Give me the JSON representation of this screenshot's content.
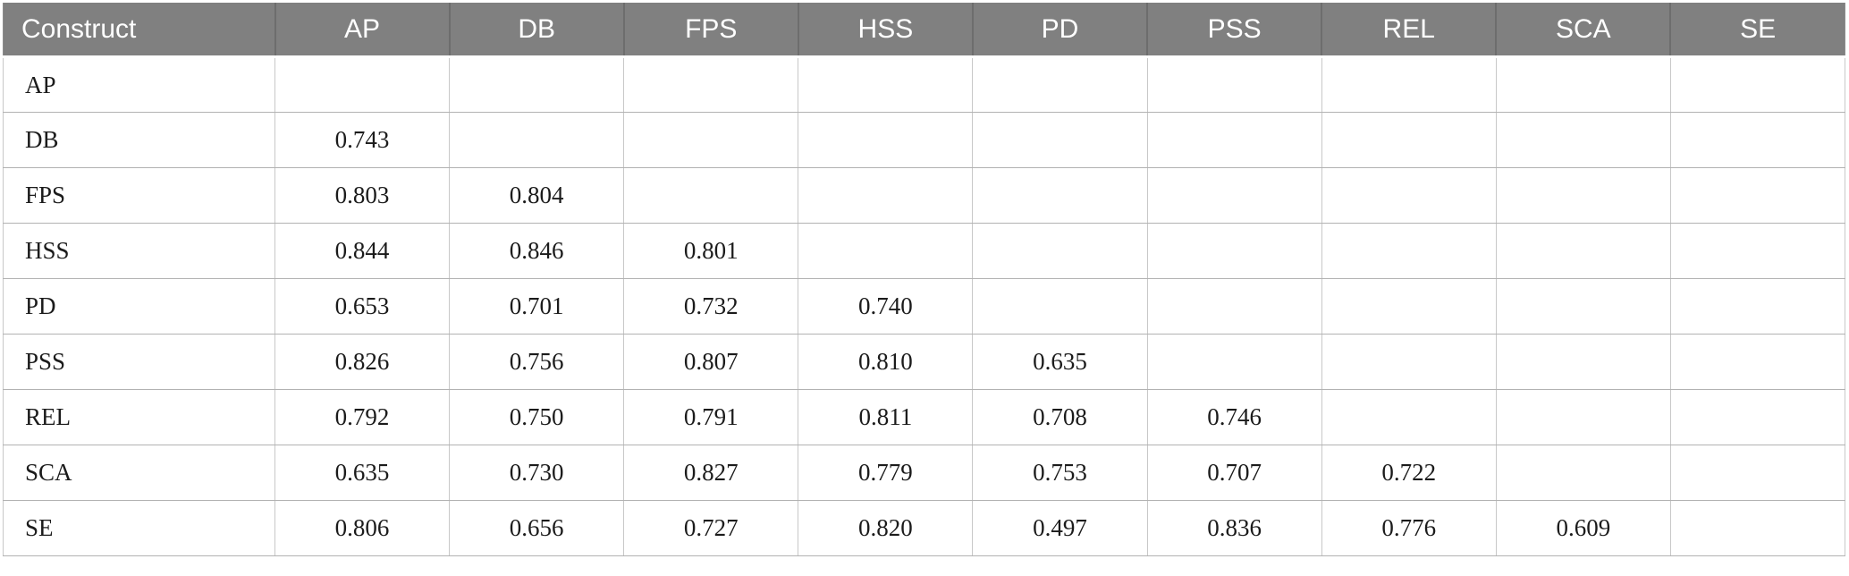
{
  "colors": {
    "header_bg": "#808080",
    "header_text": "#ffffff",
    "header_divider": "#6d6d6d",
    "grid_line_vertical": "#c8c8c8",
    "grid_line_horizontal": "#b2b2b2",
    "body_text": "#1b1b1b",
    "background": "#ffffff"
  },
  "table": {
    "header": [
      "Construct",
      "AP",
      "DB",
      "FPS",
      "HSS",
      "PD",
      "PSS",
      "REL",
      "SCA",
      "SE"
    ],
    "rows": [
      {
        "label": "AP",
        "values": [
          "",
          "",
          "",
          "",
          "",
          "",
          "",
          "",
          ""
        ]
      },
      {
        "label": "DB",
        "values": [
          "0.743",
          "",
          "",
          "",
          "",
          "",
          "",
          "",
          ""
        ]
      },
      {
        "label": "FPS",
        "values": [
          "0.803",
          "0.804",
          "",
          "",
          "",
          "",
          "",
          "",
          ""
        ]
      },
      {
        "label": "HSS",
        "values": [
          "0.844",
          "0.846",
          "0.801",
          "",
          "",
          "",
          "",
          "",
          ""
        ]
      },
      {
        "label": "PD",
        "values": [
          "0.653",
          "0.701",
          "0.732",
          "0.740",
          "",
          "",
          "",
          "",
          ""
        ]
      },
      {
        "label": "PSS",
        "values": [
          "0.826",
          "0.756",
          "0.807",
          "0.810",
          "0.635",
          "",
          "",
          "",
          ""
        ]
      },
      {
        "label": "REL",
        "values": [
          "0.792",
          "0.750",
          "0.791",
          "0.811",
          "0.708",
          "0.746",
          "",
          "",
          ""
        ]
      },
      {
        "label": "SCA",
        "values": [
          "0.635",
          "0.730",
          "0.827",
          "0.779",
          "0.753",
          "0.707",
          "0.722",
          "",
          ""
        ]
      },
      {
        "label": "SE",
        "values": [
          "0.806",
          "0.656",
          "0.727",
          "0.820",
          "0.497",
          "0.836",
          "0.776",
          "0.609",
          ""
        ]
      }
    ]
  }
}
